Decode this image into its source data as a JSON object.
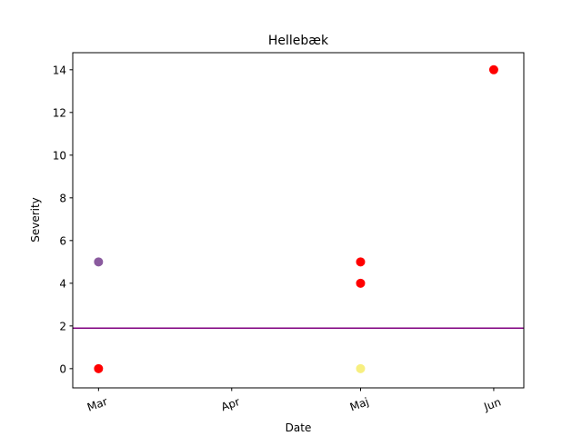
{
  "chart_data": {
    "type": "scatter",
    "title": "Hellebæk",
    "xlabel": "Date",
    "ylabel": "Severity",
    "x_ticks": [
      {
        "date": "2021-03-01",
        "label": "Mar"
      },
      {
        "date": "2021-04-01",
        "label": "Apr"
      },
      {
        "date": "2021-05-01",
        "label": "Maj"
      },
      {
        "date": "2021-06-01",
        "label": "Jun"
      }
    ],
    "xlim": [
      "2021-02-23",
      "2021-06-08"
    ],
    "ylim": [
      -0.9,
      14.8
    ],
    "yticks": [
      0,
      2,
      4,
      6,
      8,
      10,
      12,
      14
    ],
    "points": [
      {
        "x": "2021-03-01",
        "y": 0,
        "color": "#ff0000"
      },
      {
        "x": "2021-03-01",
        "y": 5,
        "color": "#8a5a9e"
      },
      {
        "x": "2021-05-01",
        "y": 0,
        "color": "#f7ef80"
      },
      {
        "x": "2021-05-01",
        "y": 4,
        "color": "#ff0000"
      },
      {
        "x": "2021-05-01",
        "y": 5,
        "color": "#ff0000"
      },
      {
        "x": "2021-06-01",
        "y": 14,
        "color": "#ff0000"
      }
    ],
    "hline": {
      "y": 1.9,
      "color": "#800080"
    },
    "grid": false,
    "legend": "none"
  }
}
